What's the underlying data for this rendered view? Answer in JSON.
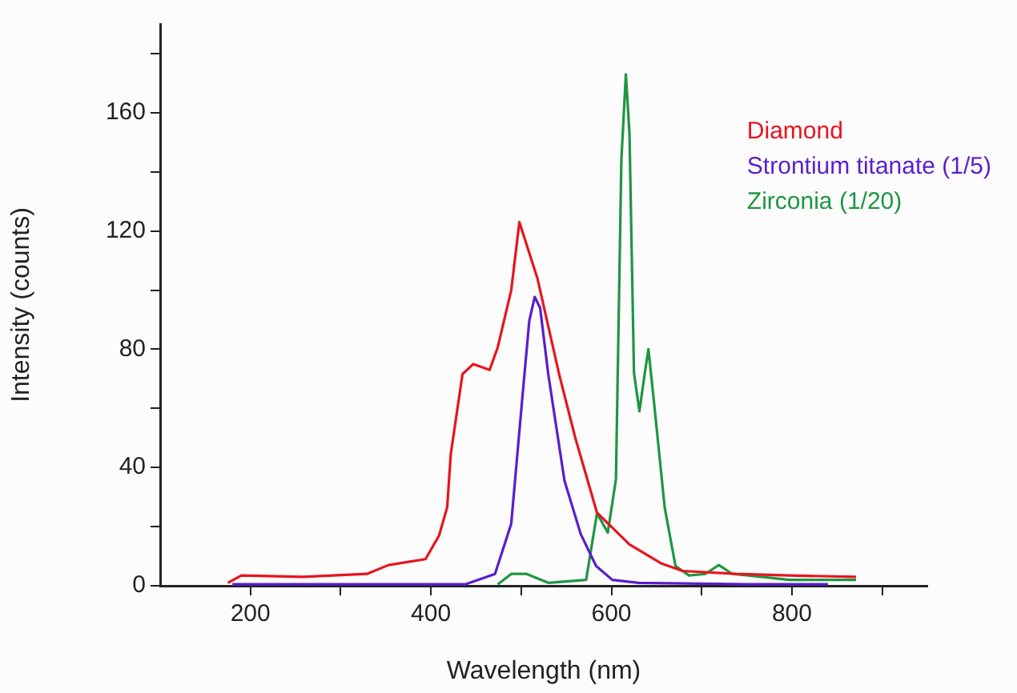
{
  "chart_data": {
    "type": "line",
    "xlabel": "Wavelength (nm)",
    "ylabel": "Intensity (counts)",
    "xlim": [
      100,
      950
    ],
    "xticks": [
      200,
      {
        "value": 300,
        "label": null
      },
      400,
      {
        "value": 500,
        "label": null
      },
      600,
      {
        "value": 700,
        "label": null
      },
      800,
      {
        "value": 900,
        "label": null
      }
    ],
    "ylim": [
      0,
      190
    ],
    "yticks": [
      0,
      {
        "value": 20,
        "label": null
      },
      40,
      {
        "value": 60,
        "label": null
      },
      80,
      {
        "value": 100,
        "label": null
      },
      120,
      {
        "value": 140,
        "label": null
      },
      160,
      {
        "value": 180,
        "label": null
      }
    ],
    "grid": false,
    "legend": "top right",
    "marker": "none",
    "line_style": "solid",
    "series": [
      {
        "name": "Diamond",
        "color": "#e8141e",
        "x": [
          175,
          190,
          258,
          329,
          353,
          394,
          409,
          418,
          422,
          435,
          447,
          465,
          474,
          489,
          498,
          518,
          542,
          560,
          584,
          620,
          655,
          679,
          738,
          797,
          871
        ],
        "values": [
          1,
          3.5,
          3,
          4,
          7,
          9,
          17,
          26.5,
          44.5,
          71.6,
          75,
          73,
          80.6,
          100,
          123,
          104,
          71.6,
          50,
          24.7,
          14,
          7.6,
          5,
          4,
          3.5,
          3
        ]
      },
      {
        "name": "Strontium titanate (1/5)",
        "color": "#5a1ecd",
        "x": [
          180,
          300,
          438,
          471,
          489,
          501,
          509,
          515,
          521,
          530,
          548,
          566,
          583,
          601,
          630,
          750,
          840
        ],
        "values": [
          0.5,
          0.5,
          0.5,
          4,
          21,
          62.6,
          89.6,
          97.7,
          94,
          71.6,
          35.5,
          17.5,
          6.7,
          2,
          1,
          0.5,
          0.5
        ]
      },
      {
        "name": "Zirconia (1/20)",
        "color": "#1e9641",
        "x": [
          474,
          489,
          506,
          530,
          572,
          584,
          596,
          605,
          608,
          611,
          616,
          620,
          625,
          631,
          637,
          641,
          647,
          659,
          671,
          686,
          704,
          719,
          734,
          752,
          797,
          871
        ],
        "values": [
          0.5,
          4,
          4,
          1,
          2,
          24.5,
          18,
          36,
          90,
          144,
          173,
          153,
          72,
          59,
          72,
          80,
          62.6,
          26.5,
          6.7,
          3.5,
          4,
          7,
          4,
          3.5,
          2,
          2
        ]
      }
    ]
  }
}
